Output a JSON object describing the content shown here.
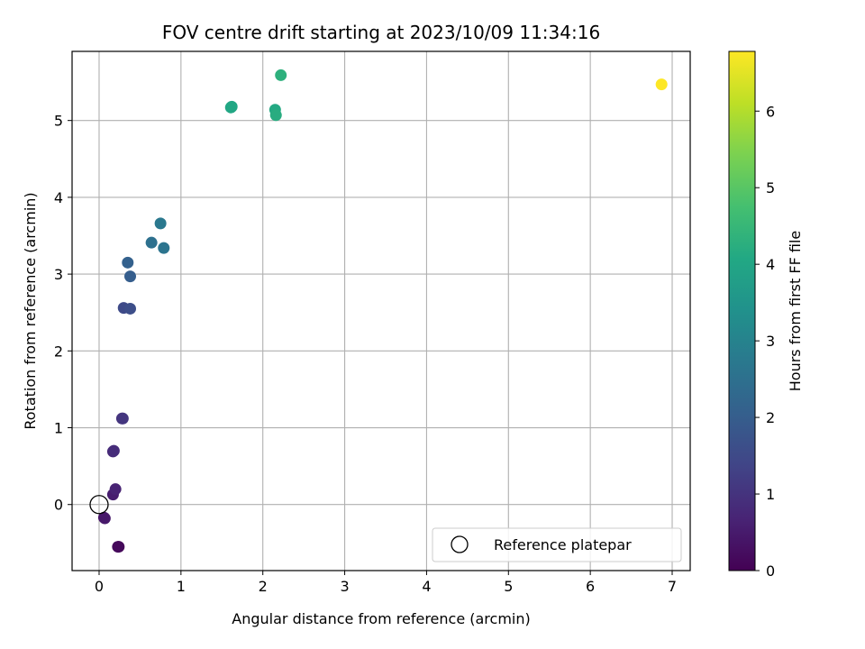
{
  "chart_data": {
    "type": "scatter",
    "title": "FOV centre drift starting at 2023/10/09 11:34:16",
    "xlabel": "Angular distance from reference (arcmin)",
    "ylabel": "Rotation from reference (arcmin)",
    "xlim": [
      -0.33,
      7.22
    ],
    "ylim": [
      -0.86,
      5.9
    ],
    "xticks": [
      0,
      1,
      2,
      3,
      4,
      5,
      6,
      7
    ],
    "yticks": [
      0,
      1,
      2,
      3,
      4,
      5
    ],
    "grid": true,
    "colorbar": {
      "label": "Hours from first FF file",
      "range": [
        0,
        6.78
      ],
      "ticks": [
        0,
        1,
        2,
        3,
        4,
        5,
        6
      ],
      "colormap": "viridis"
    },
    "legend": {
      "placement": "lower-right",
      "entries": [
        {
          "label": "Reference platepar",
          "marker": "open-circle"
        }
      ]
    },
    "reference_point": {
      "x": 0,
      "y": 0
    },
    "series": [
      {
        "points": [
          {
            "x": 0.24,
            "y": -0.55,
            "hours": 0.05
          },
          {
            "x": 0.23,
            "y": -0.55,
            "hours": 0.15
          },
          {
            "x": 0.06,
            "y": -0.17,
            "hours": 0.35
          },
          {
            "x": 0.07,
            "y": -0.18,
            "hours": 0.45
          },
          {
            "x": 0.17,
            "y": 0.13,
            "hours": 0.55
          },
          {
            "x": 0.2,
            "y": 0.2,
            "hours": 0.65
          },
          {
            "x": 0.17,
            "y": 0.69,
            "hours": 0.75
          },
          {
            "x": 0.18,
            "y": 0.7,
            "hours": 0.85
          },
          {
            "x": 0.28,
            "y": 1.12,
            "hours": 0.95
          },
          {
            "x": 0.29,
            "y": 1.12,
            "hours": 1.05
          },
          {
            "x": 0.3,
            "y": 2.56,
            "hours": 1.5
          },
          {
            "x": 0.38,
            "y": 2.55,
            "hours": 1.6
          },
          {
            "x": 0.38,
            "y": 2.97,
            "hours": 2.0
          },
          {
            "x": 0.35,
            "y": 3.15,
            "hours": 2.1
          },
          {
            "x": 0.64,
            "y": 3.41,
            "hours": 2.5
          },
          {
            "x": 0.79,
            "y": 3.34,
            "hours": 2.6
          },
          {
            "x": 0.75,
            "y": 3.66,
            "hours": 2.7
          },
          {
            "x": 1.61,
            "y": 5.17,
            "hours": 4.0
          },
          {
            "x": 1.62,
            "y": 5.18,
            "hours": 4.05
          },
          {
            "x": 2.15,
            "y": 5.14,
            "hours": 4.1
          },
          {
            "x": 2.16,
            "y": 5.07,
            "hours": 4.2
          },
          {
            "x": 2.22,
            "y": 5.59,
            "hours": 4.3
          },
          {
            "x": 6.87,
            "y": 5.47,
            "hours": 6.78
          }
        ]
      }
    ]
  }
}
